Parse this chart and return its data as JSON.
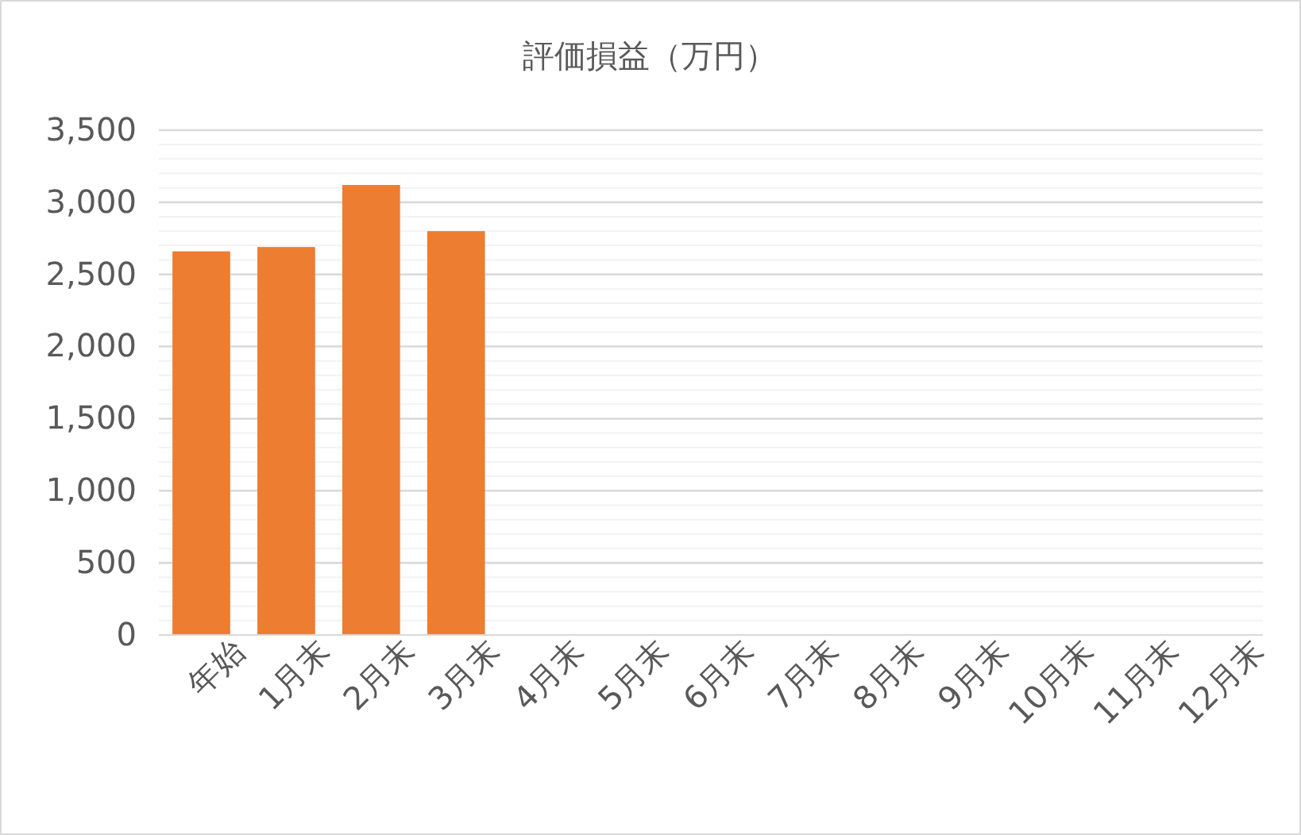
{
  "chart_data": {
    "type": "bar",
    "title": "評価損益（万円）",
    "categories": [
      "年始",
      "1月末",
      "2月末",
      "3月末",
      "4月末",
      "5月末",
      "6月末",
      "7月末",
      "8月末",
      "9月末",
      "10月末",
      "11月末",
      "12月末"
    ],
    "values": [
      2660,
      2690,
      3120,
      2800,
      null,
      null,
      null,
      null,
      null,
      null,
      null,
      null,
      null
    ],
    "color": "#ed7d31",
    "ylim": [
      0,
      3500
    ],
    "yticks": [
      0,
      {
        "value": 100,
        "label": null
      },
      {
        "value": 200,
        "label": null
      },
      {
        "value": 300,
        "label": null
      },
      {
        "value": 400,
        "label": null
      },
      {
        "value": 500,
        "label": "500"
      },
      {
        "value": 600,
        "label": null
      },
      {
        "value": 700,
        "label": null
      },
      {
        "value": 800,
        "label": null
      },
      {
        "value": 900,
        "label": null
      },
      {
        "value": 1000,
        "label": "1,000"
      },
      {
        "value": 1100,
        "label": null
      },
      {
        "value": 1200,
        "label": null
      },
      {
        "value": 1300,
        "label": null
      },
      {
        "value": 1400,
        "label": null
      },
      {
        "value": 1500,
        "label": "1,500"
      },
      {
        "value": 1600,
        "label": null
      },
      {
        "value": 1700,
        "label": null
      },
      {
        "value": 1800,
        "label": null
      },
      {
        "value": 1900,
        "label": null
      },
      {
        "value": 2000,
        "label": "2,000"
      },
      {
        "value": 2100,
        "label": null
      },
      {
        "value": 2200,
        "label": null
      },
      {
        "value": 2300,
        "label": null
      },
      {
        "value": 2400,
        "label": null
      },
      {
        "value": 2500,
        "label": "2,500"
      },
      {
        "value": 2600,
        "label": null
      },
      {
        "value": 2700,
        "label": null
      },
      {
        "value": 2800,
        "label": null
      },
      {
        "value": 2900,
        "label": null
      },
      {
        "value": 3000,
        "label": "3,000"
      },
      {
        "value": 3100,
        "label": null
      },
      {
        "value": 3200,
        "label": null
      },
      {
        "value": 3300,
        "label": null
      },
      {
        "value": 3400,
        "label": null
      },
      {
        "value": 3500,
        "label": "3,500"
      }
    ],
    "grid": true
  }
}
